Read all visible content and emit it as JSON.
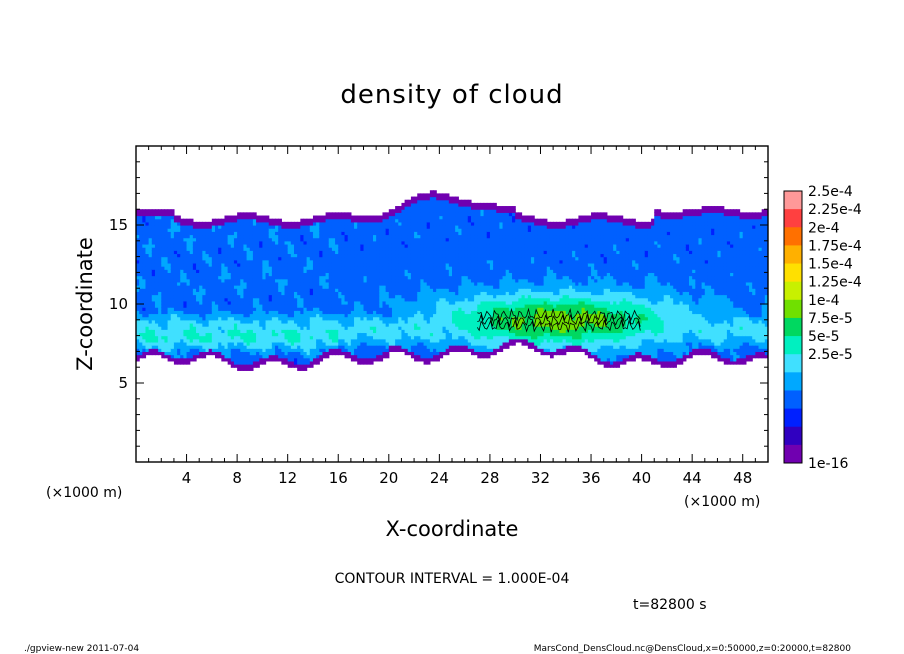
{
  "chart_data": {
    "type": "heatmap",
    "title": "density of cloud",
    "xlabel": "X-coordinate",
    "ylabel": "Z-coordinate",
    "x_unit": "(×1000 m)",
    "y_unit": "(×1000 m)",
    "xlim": [
      0,
      50
    ],
    "ylim": [
      0,
      20
    ],
    "x_ticks": [
      4,
      8,
      12,
      16,
      20,
      24,
      28,
      32,
      36,
      40,
      44,
      48
    ],
    "y_ticks": [
      5,
      10,
      15
    ],
    "colorbar": {
      "labels": [
        "2.5e-4",
        "2.25e-4",
        "2e-4",
        "1.75e-4",
        "1.5e-4",
        "1.25e-4",
        "1e-4",
        "7.5e-5",
        "5e-5",
        "2.5e-5",
        "1e-16"
      ],
      "colors_top_to_bottom": [
        "#ff9999",
        "#ff4040",
        "#ff7000",
        "#ffb000",
        "#ffe000",
        "#c8f000",
        "#70e000",
        "#00d860",
        "#00f0c0",
        "#40e0ff",
        "#00a8ff",
        "#0060ff",
        "#0020ff",
        "#3000c0",
        "#7000b0"
      ]
    },
    "contour_interval": "CONTOUR INTERVAL = 1.000E-04",
    "time_label": "t=82800 s",
    "data_summary": {
      "cloud_base_z": 6.3,
      "cloud_top_z": 16.2,
      "peak_region_x": [
        27,
        40
      ],
      "peak_region_z": [
        8.2,
        9.7
      ],
      "peak_density": 0.000125
    }
  },
  "footer": {
    "left": "./gpview-new  2011-07-04",
    "right": "MarsCond_DensCloud.nc@DensCloud,x=0:50000,z=0:20000,t=82800"
  },
  "colors": {
    "frame": "#000000",
    "background": "#ffffff"
  }
}
